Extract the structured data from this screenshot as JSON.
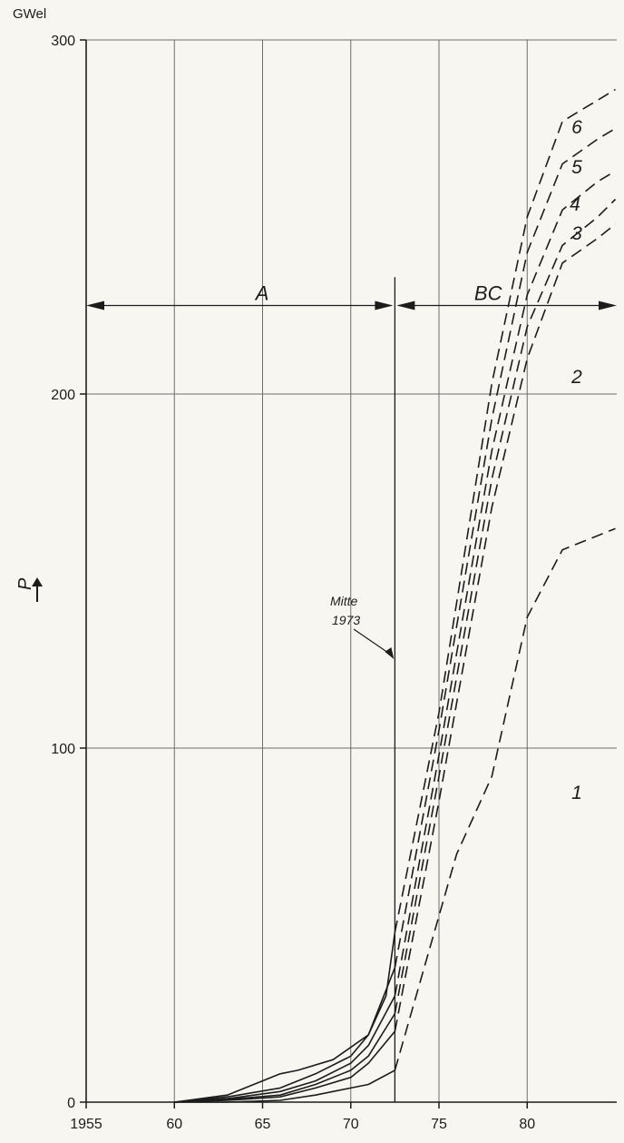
{
  "chart_data": {
    "type": "line",
    "y_unit": "GWel",
    "y_axis_symbol": "P",
    "xlim": [
      1955,
      85
    ],
    "ylim": [
      0,
      300
    ],
    "x_ticks": [
      "1955",
      "60",
      "65",
      "70",
      "75",
      "80"
    ],
    "y_ticks": [
      "0",
      "100",
      "200",
      "300"
    ],
    "grid": true,
    "solid_until": 72.5,
    "series": [
      {
        "name": "1",
        "x": [
          60,
          63,
          66,
          68,
          70,
          71,
          72.5,
          76,
          78,
          80,
          82,
          83,
          85
        ],
        "y": [
          0,
          0,
          0.5,
          2,
          4,
          5,
          9,
          70,
          92,
          137,
          156,
          158,
          162
        ]
      },
      {
        "name": "2",
        "x": [
          60,
          63,
          66,
          68,
          70,
          71,
          72.5,
          75,
          78,
          80,
          82,
          84,
          85
        ],
        "y": [
          0,
          0.5,
          1.5,
          4,
          7,
          11,
          20,
          85,
          168,
          210,
          237,
          244,
          248
        ]
      },
      {
        "name": "3",
        "x": [
          60,
          63,
          66,
          68,
          70,
          71,
          72.5,
          75,
          78,
          80,
          82,
          84,
          85
        ],
        "y": [
          0,
          0.8,
          2,
          5,
          9,
          13,
          25,
          92,
          176,
          219,
          242,
          250,
          255
        ]
      },
      {
        "name": "4",
        "x": [
          60,
          63,
          66,
          68,
          70,
          71,
          72.5,
          75,
          78,
          80,
          82,
          84,
          85
        ],
        "y": [
          0,
          1,
          3,
          6,
          11,
          16,
          30,
          98,
          184,
          228,
          252,
          260,
          263
        ]
      },
      {
        "name": "5",
        "x": [
          60,
          63,
          66,
          68,
          70,
          71,
          72.5,
          75,
          78,
          80,
          82,
          84,
          85
        ],
        "y": [
          0,
          1.5,
          4,
          8,
          13,
          19,
          38,
          105,
          193,
          240,
          265,
          272,
          275
        ]
      },
      {
        "name": "6",
        "x": [
          60,
          63,
          66,
          67,
          69,
          71,
          72,
          72.5,
          75,
          78,
          80,
          82,
          84,
          85
        ],
        "y": [
          0,
          2,
          8,
          9,
          12,
          19,
          30,
          48,
          110,
          203,
          250,
          277,
          283,
          286
        ]
      }
    ],
    "annotations": {
      "region_a": "A",
      "region_bc": "BC",
      "mitte_line1": "Mitte",
      "mitte_line2": "1973"
    }
  }
}
